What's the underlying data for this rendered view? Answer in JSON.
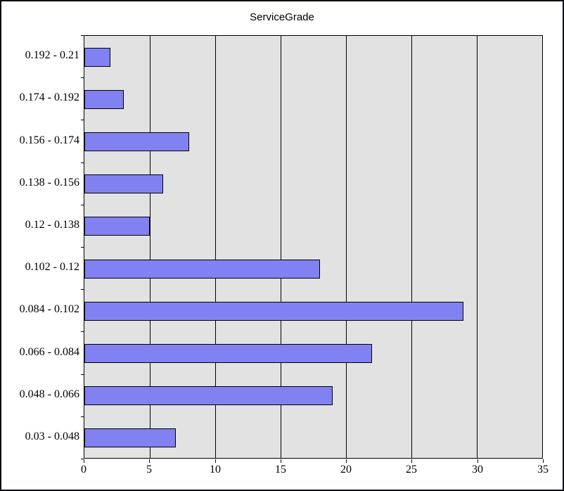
{
  "window": {
    "background": "#ffffff",
    "border_color": "#0a0e14"
  },
  "chart_data": {
    "type": "bar",
    "orientation": "horizontal",
    "title": "ServiceGrade",
    "categories": [
      "0.192 - 0.21",
      "0.174 - 0.192",
      "0.156 - 0.174",
      "0.138 - 0.156",
      "0.12 - 0.138",
      "0.102 - 0.12",
      "0.084 - 0.102",
      "0.066 - 0.084",
      "0.048 - 0.066",
      "0.03 - 0.048"
    ],
    "values": [
      2,
      3,
      8,
      6,
      5,
      18,
      29,
      22,
      19,
      7
    ],
    "xlabel": "",
    "ylabel": "",
    "xlim": [
      0,
      35
    ],
    "x_ticks": [
      0,
      5,
      10,
      15,
      20,
      25,
      30,
      35
    ],
    "grid": "vertical",
    "legend": "none",
    "bar_color": "#8181f2",
    "bar_border_color": "#000000",
    "plot_background": "#e2e2e2",
    "gridline_color": "#000000",
    "axis_color": "#000000",
    "text_color": "#000000"
  }
}
